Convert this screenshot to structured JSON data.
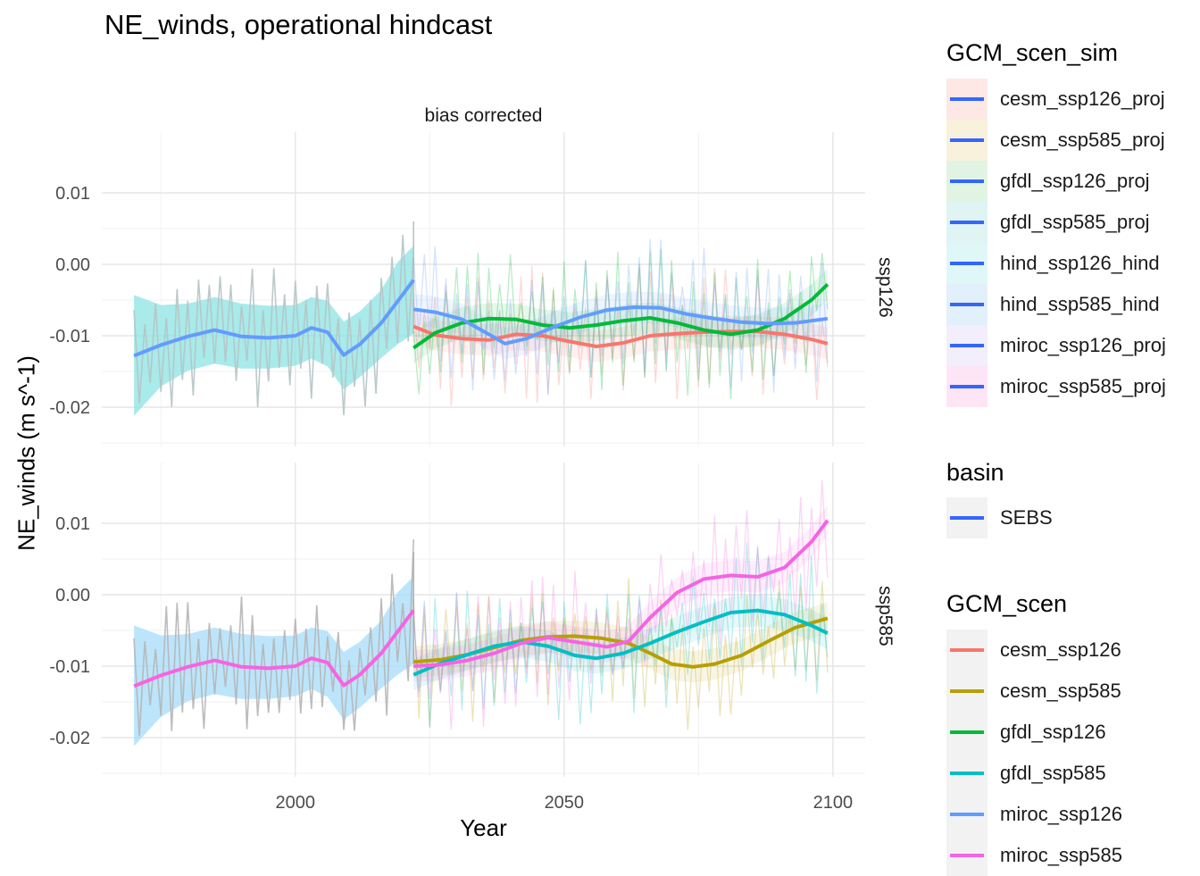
{
  "title": "NE_winds, operational hindcast",
  "strip_label": "bias corrected",
  "x_axis_label": "Year",
  "y_axis_label": "NE_winds (m s^-1)",
  "legends": {
    "sim": {
      "title": "GCM_scen_sim",
      "items": [
        {
          "label": "cesm_ssp126_proj",
          "fill": "#fde8e6"
        },
        {
          "label": "cesm_ssp585_proj",
          "fill": "#f8f1dc"
        },
        {
          "label": "gfdl_ssp126_proj",
          "fill": "#e1f4e3"
        },
        {
          "label": "gfdl_ssp585_proj",
          "fill": "#dff4f3"
        },
        {
          "label": "hind_ssp126_hind",
          "fill": "#e0f7f8"
        },
        {
          "label": "hind_ssp585_hind",
          "fill": "#e2f0fb"
        },
        {
          "label": "miroc_ssp126_proj",
          "fill": "#f3eefc"
        },
        {
          "label": "miroc_ssp585_proj",
          "fill": "#fde5f6"
        }
      ],
      "line_color": "#3366ff"
    },
    "basin": {
      "title": "basin",
      "items": [
        {
          "label": "SEBS",
          "fill": "#f2f2f2"
        }
      ],
      "line_color": "#3366ff"
    },
    "scen": {
      "title": "GCM_scen",
      "items": [
        {
          "label": "cesm_ssp126",
          "color": "#f8766d"
        },
        {
          "label": "cesm_ssp585",
          "color": "#b79f00"
        },
        {
          "label": "gfdl_ssp126",
          "color": "#00ba38"
        },
        {
          "label": "gfdl_ssp585",
          "color": "#00bfc4"
        },
        {
          "label": "miroc_ssp126",
          "color": "#619cff"
        },
        {
          "label": "miroc_ssp585",
          "color": "#f564e3"
        }
      ]
    }
  },
  "chart_data": {
    "type": "line",
    "x_ticks": [
      2000,
      2050,
      2100
    ],
    "y_ticks": [
      0.01,
      0.0,
      -0.01,
      -0.02
    ],
    "y_tick_labels": [
      "0.01",
      "0.00",
      "-0.01",
      "-0.02"
    ],
    "xlim": [
      1964,
      2106
    ],
    "grid": true,
    "legend_position": "right",
    "panels": [
      {
        "label": "ssp126",
        "ylim": [
          -0.0255,
          0.0185
        ],
        "hindcast": {
          "raw_color": "#b5c4c5",
          "band_color": "#8ce3e3",
          "smooth_color": "#619cff",
          "smooth": [
            [
              1970,
              -0.0128
            ],
            [
              1975,
              -0.0113
            ],
            [
              1980,
              -0.0101
            ],
            [
              1985,
              -0.0092
            ],
            [
              1990,
              -0.0101
            ],
            [
              1995,
              -0.0103
            ],
            [
              2000,
              -0.01
            ],
            [
              2003,
              -0.0089
            ],
            [
              2006,
              -0.0095
            ],
            [
              2009,
              -0.0127
            ],
            [
              2012,
              -0.0112
            ],
            [
              2016,
              -0.0082
            ],
            [
              2019,
              -0.0052
            ],
            [
              2022,
              -0.0022
            ]
          ],
          "band": [
            [
              1970,
              -0.0212,
              -0.0043
            ],
            [
              1975,
              -0.0171,
              -0.0057
            ],
            [
              1980,
              -0.0149,
              -0.0055
            ],
            [
              1985,
              -0.0139,
              -0.0046
            ],
            [
              1990,
              -0.0146,
              -0.0055
            ],
            [
              1995,
              -0.0146,
              -0.0058
            ],
            [
              2000,
              -0.0142,
              -0.0057
            ],
            [
              2003,
              -0.0132,
              -0.0046
            ],
            [
              2006,
              -0.0143,
              -0.0051
            ],
            [
              2009,
              -0.0175,
              -0.008
            ],
            [
              2012,
              -0.0158,
              -0.0066
            ],
            [
              2016,
              -0.0131,
              -0.0036
            ],
            [
              2019,
              -0.0112,
              0.0003
            ],
            [
              2022,
              -0.0097,
              0.0026
            ]
          ]
        },
        "projections": [
          {
            "name": "cesm_ssp126",
            "color": "#f8766d",
            "smooth": [
              [
                2022,
                -0.0087
              ],
              [
                2026,
                -0.0099
              ],
              [
                2031,
                -0.0104
              ],
              [
                2036,
                -0.0106
              ],
              [
                2041,
                -0.0098
              ],
              [
                2046,
                -0.01
              ],
              [
                2051,
                -0.0108
              ],
              [
                2056,
                -0.0115
              ],
              [
                2061,
                -0.011
              ],
              [
                2066,
                -0.01
              ],
              [
                2071,
                -0.0097
              ],
              [
                2076,
                -0.0095
              ],
              [
                2081,
                -0.0094
              ],
              [
                2086,
                -0.0094
              ],
              [
                2091,
                -0.0098
              ],
              [
                2096,
                -0.0105
              ],
              [
                2099,
                -0.0111
              ]
            ]
          },
          {
            "name": "gfdl_ssp126",
            "color": "#00ba38",
            "smooth": [
              [
                2022,
                -0.0117
              ],
              [
                2026,
                -0.0096
              ],
              [
                2031,
                -0.0082
              ],
              [
                2036,
                -0.0076
              ],
              [
                2041,
                -0.0077
              ],
              [
                2046,
                -0.0085
              ],
              [
                2051,
                -0.0089
              ],
              [
                2056,
                -0.0085
              ],
              [
                2061,
                -0.0079
              ],
              [
                2066,
                -0.0075
              ],
              [
                2071,
                -0.0082
              ],
              [
                2076,
                -0.0092
              ],
              [
                2081,
                -0.0098
              ],
              [
                2086,
                -0.0092
              ],
              [
                2091,
                -0.0076
              ],
              [
                2096,
                -0.005
              ],
              [
                2099,
                -0.0028
              ]
            ]
          },
          {
            "name": "miroc_ssp126",
            "color": "#619cff",
            "smooth": [
              [
                2022,
                -0.0063
              ],
              [
                2026,
                -0.0067
              ],
              [
                2031,
                -0.0077
              ],
              [
                2036,
                -0.0098
              ],
              [
                2039,
                -0.0111
              ],
              [
                2043,
                -0.0104
              ],
              [
                2048,
                -0.0088
              ],
              [
                2053,
                -0.0074
              ],
              [
                2058,
                -0.0064
              ],
              [
                2063,
                -0.006
              ],
              [
                2068,
                -0.0061
              ],
              [
                2073,
                -0.007
              ],
              [
                2078,
                -0.0076
              ],
              [
                2083,
                -0.0081
              ],
              [
                2088,
                -0.0083
              ],
              [
                2093,
                -0.0082
              ],
              [
                2099,
                -0.0076
              ]
            ]
          }
        ]
      },
      {
        "label": "ssp585",
        "ylim": [
          -0.0255,
          0.0185
        ],
        "hindcast": {
          "raw_color": "#b5b5b5",
          "band_color": "#a6dcfa",
          "smooth_color": "#f564e3",
          "smooth": [
            [
              1970,
              -0.0128
            ],
            [
              1975,
              -0.0113
            ],
            [
              1980,
              -0.0101
            ],
            [
              1985,
              -0.0092
            ],
            [
              1990,
              -0.0101
            ],
            [
              1995,
              -0.0103
            ],
            [
              2000,
              -0.01
            ],
            [
              2003,
              -0.0089
            ],
            [
              2006,
              -0.0095
            ],
            [
              2009,
              -0.0127
            ],
            [
              2012,
              -0.0112
            ],
            [
              2016,
              -0.0082
            ],
            [
              2019,
              -0.0052
            ],
            [
              2022,
              -0.0022
            ]
          ],
          "band": [
            [
              1970,
              -0.0212,
              -0.0043
            ],
            [
              1975,
              -0.0171,
              -0.0057
            ],
            [
              1980,
              -0.0149,
              -0.0055
            ],
            [
              1985,
              -0.0139,
              -0.0046
            ],
            [
              1990,
              -0.0146,
              -0.0055
            ],
            [
              1995,
              -0.0146,
              -0.0058
            ],
            [
              2000,
              -0.0142,
              -0.0057
            ],
            [
              2003,
              -0.0132,
              -0.0046
            ],
            [
              2006,
              -0.0143,
              -0.0051
            ],
            [
              2009,
              -0.0175,
              -0.008
            ],
            [
              2012,
              -0.0158,
              -0.0066
            ],
            [
              2016,
              -0.0131,
              -0.0036
            ],
            [
              2019,
              -0.0112,
              0.0003
            ],
            [
              2022,
              -0.0097,
              0.0026
            ]
          ]
        },
        "projections": [
          {
            "name": "cesm_ssp585",
            "color": "#b79f00",
            "smooth": [
              [
                2022,
                -0.0094
              ],
              [
                2027,
                -0.0091
              ],
              [
                2032,
                -0.0084
              ],
              [
                2037,
                -0.0074
              ],
              [
                2042,
                -0.0064
              ],
              [
                2047,
                -0.0059
              ],
              [
                2052,
                -0.0058
              ],
              [
                2057,
                -0.0061
              ],
              [
                2062,
                -0.0068
              ],
              [
                2066,
                -0.0082
              ],
              [
                2070,
                -0.0097
              ],
              [
                2074,
                -0.0101
              ],
              [
                2078,
                -0.0097
              ],
              [
                2083,
                -0.0085
              ],
              [
                2088,
                -0.0065
              ],
              [
                2093,
                -0.0046
              ],
              [
                2099,
                -0.0033
              ]
            ]
          },
          {
            "name": "gfdl_ssp585",
            "color": "#00bfc4",
            "smooth": [
              [
                2022,
                -0.0112
              ],
              [
                2027,
                -0.0096
              ],
              [
                2032,
                -0.0084
              ],
              [
                2037,
                -0.0072
              ],
              [
                2042,
                -0.0066
              ],
              [
                2047,
                -0.0072
              ],
              [
                2052,
                -0.0085
              ],
              [
                2056,
                -0.0089
              ],
              [
                2061,
                -0.0082
              ],
              [
                2066,
                -0.0068
              ],
              [
                2071,
                -0.0052
              ],
              [
                2076,
                -0.0038
              ],
              [
                2081,
                -0.0025
              ],
              [
                2086,
                -0.0022
              ],
              [
                2091,
                -0.0028
              ],
              [
                2096,
                -0.0043
              ],
              [
                2099,
                -0.0054
              ]
            ]
          },
          {
            "name": "miroc_ssp585",
            "color": "#f564e3",
            "smooth": [
              [
                2022,
                -0.01
              ],
              [
                2027,
                -0.0098
              ],
              [
                2032,
                -0.0092
              ],
              [
                2037,
                -0.0082
              ],
              [
                2042,
                -0.0068
              ],
              [
                2047,
                -0.006
              ],
              [
                2052,
                -0.0066
              ],
              [
                2058,
                -0.0073
              ],
              [
                2062,
                -0.0065
              ],
              [
                2066,
                -0.0032
              ],
              [
                2071,
                0.0003
              ],
              [
                2076,
                0.0022
              ],
              [
                2081,
                0.0027
              ],
              [
                2086,
                0.0025
              ],
              [
                2091,
                0.0038
              ],
              [
                2096,
                0.0074
              ],
              [
                2099,
                0.0104
              ]
            ]
          }
        ]
      }
    ]
  }
}
